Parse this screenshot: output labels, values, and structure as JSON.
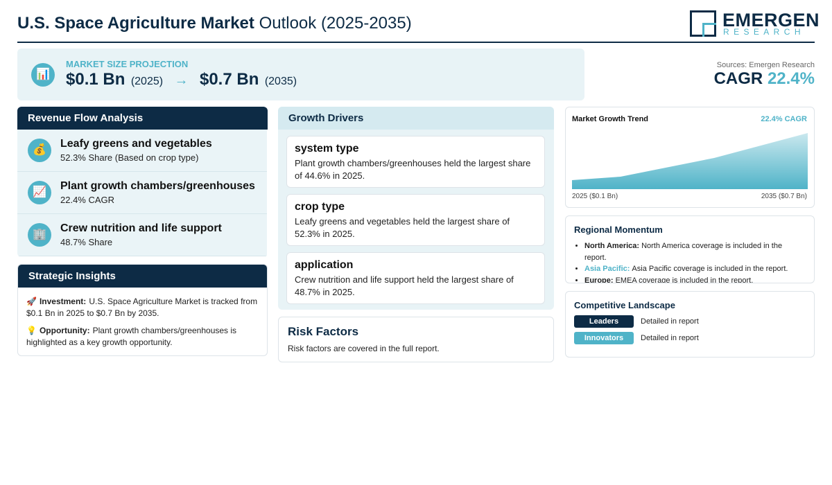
{
  "header": {
    "title_bold": "U.S. Space Agriculture Market",
    "title_rest": "Outlook (2025-2035)",
    "logo_main": "EMERGEN",
    "logo_sub": "RESEARCH"
  },
  "projection": {
    "icon": "📊",
    "label": "MARKET SIZE PROJECTION",
    "start_value": "$0.1 Bn",
    "start_year": "(2025)",
    "arrow": "→",
    "end_value": "$0.7 Bn",
    "end_year": "(2035)"
  },
  "summary": {
    "sources": "Sources: Emergen Research",
    "cagr_label": "CAGR",
    "cagr_value": "22.4%"
  },
  "revenue_flow": {
    "title": "Revenue Flow Analysis",
    "items": [
      {
        "icon": "💰",
        "title": "Leafy greens and vegetables",
        "detail": "52.3% Share (Based on crop type)"
      },
      {
        "icon": "📈",
        "title": "Plant growth chambers/greenhouses",
        "detail": "22.4% CAGR"
      },
      {
        "icon": "🏢",
        "title": "Crew nutrition and life support",
        "detail": "48.7% Share"
      }
    ]
  },
  "strategic_insights": {
    "title": "Strategic Insights",
    "items": [
      {
        "icon": "🚀",
        "label": "Investment:",
        "text": "U.S. Space Agriculture Market is tracked from $0.1 Bn in 2025 to $0.7 Bn by 2035."
      },
      {
        "icon": "💡",
        "label": "Opportunity:",
        "text": "Plant growth chambers/greenhouses is highlighted as a key growth opportunity."
      }
    ]
  },
  "growth_drivers": {
    "title": "Growth Drivers",
    "cards": [
      {
        "title": "system type",
        "text": "Plant growth chambers/greenhouses held the largest share of 44.6% in 2025."
      },
      {
        "title": "crop type",
        "text": "Leafy greens and vegetables held the largest share of 52.3% in 2025."
      },
      {
        "title": "application",
        "text": "Crew nutrition and life support held the largest share of 48.7% in 2025."
      }
    ]
  },
  "risk_factors": {
    "title": "Risk Factors",
    "text": "Risk factors are covered in the full report."
  },
  "growth_trend": {
    "title": "Market Growth Trend",
    "badge": "22.4% CAGR",
    "start_label": "2025 ($0.1 Bn)",
    "end_label": "2035 ($0.7 Bn)"
  },
  "regional": {
    "title": "Regional Momentum",
    "items": [
      {
        "region": "North America:",
        "text": "North America coverage is included in the report."
      },
      {
        "region": "Asia Pacific:",
        "text": "Asia Pacific coverage is included in the report."
      },
      {
        "region": "Europe:",
        "text": "EMEA coverage is included in the report."
      }
    ]
  },
  "competitive": {
    "title": "Competitive Landscape",
    "rows": [
      {
        "tag": "Leaders",
        "text": "Detailed in report"
      },
      {
        "tag": "Innovators",
        "text": "Detailed in report"
      }
    ]
  }
}
